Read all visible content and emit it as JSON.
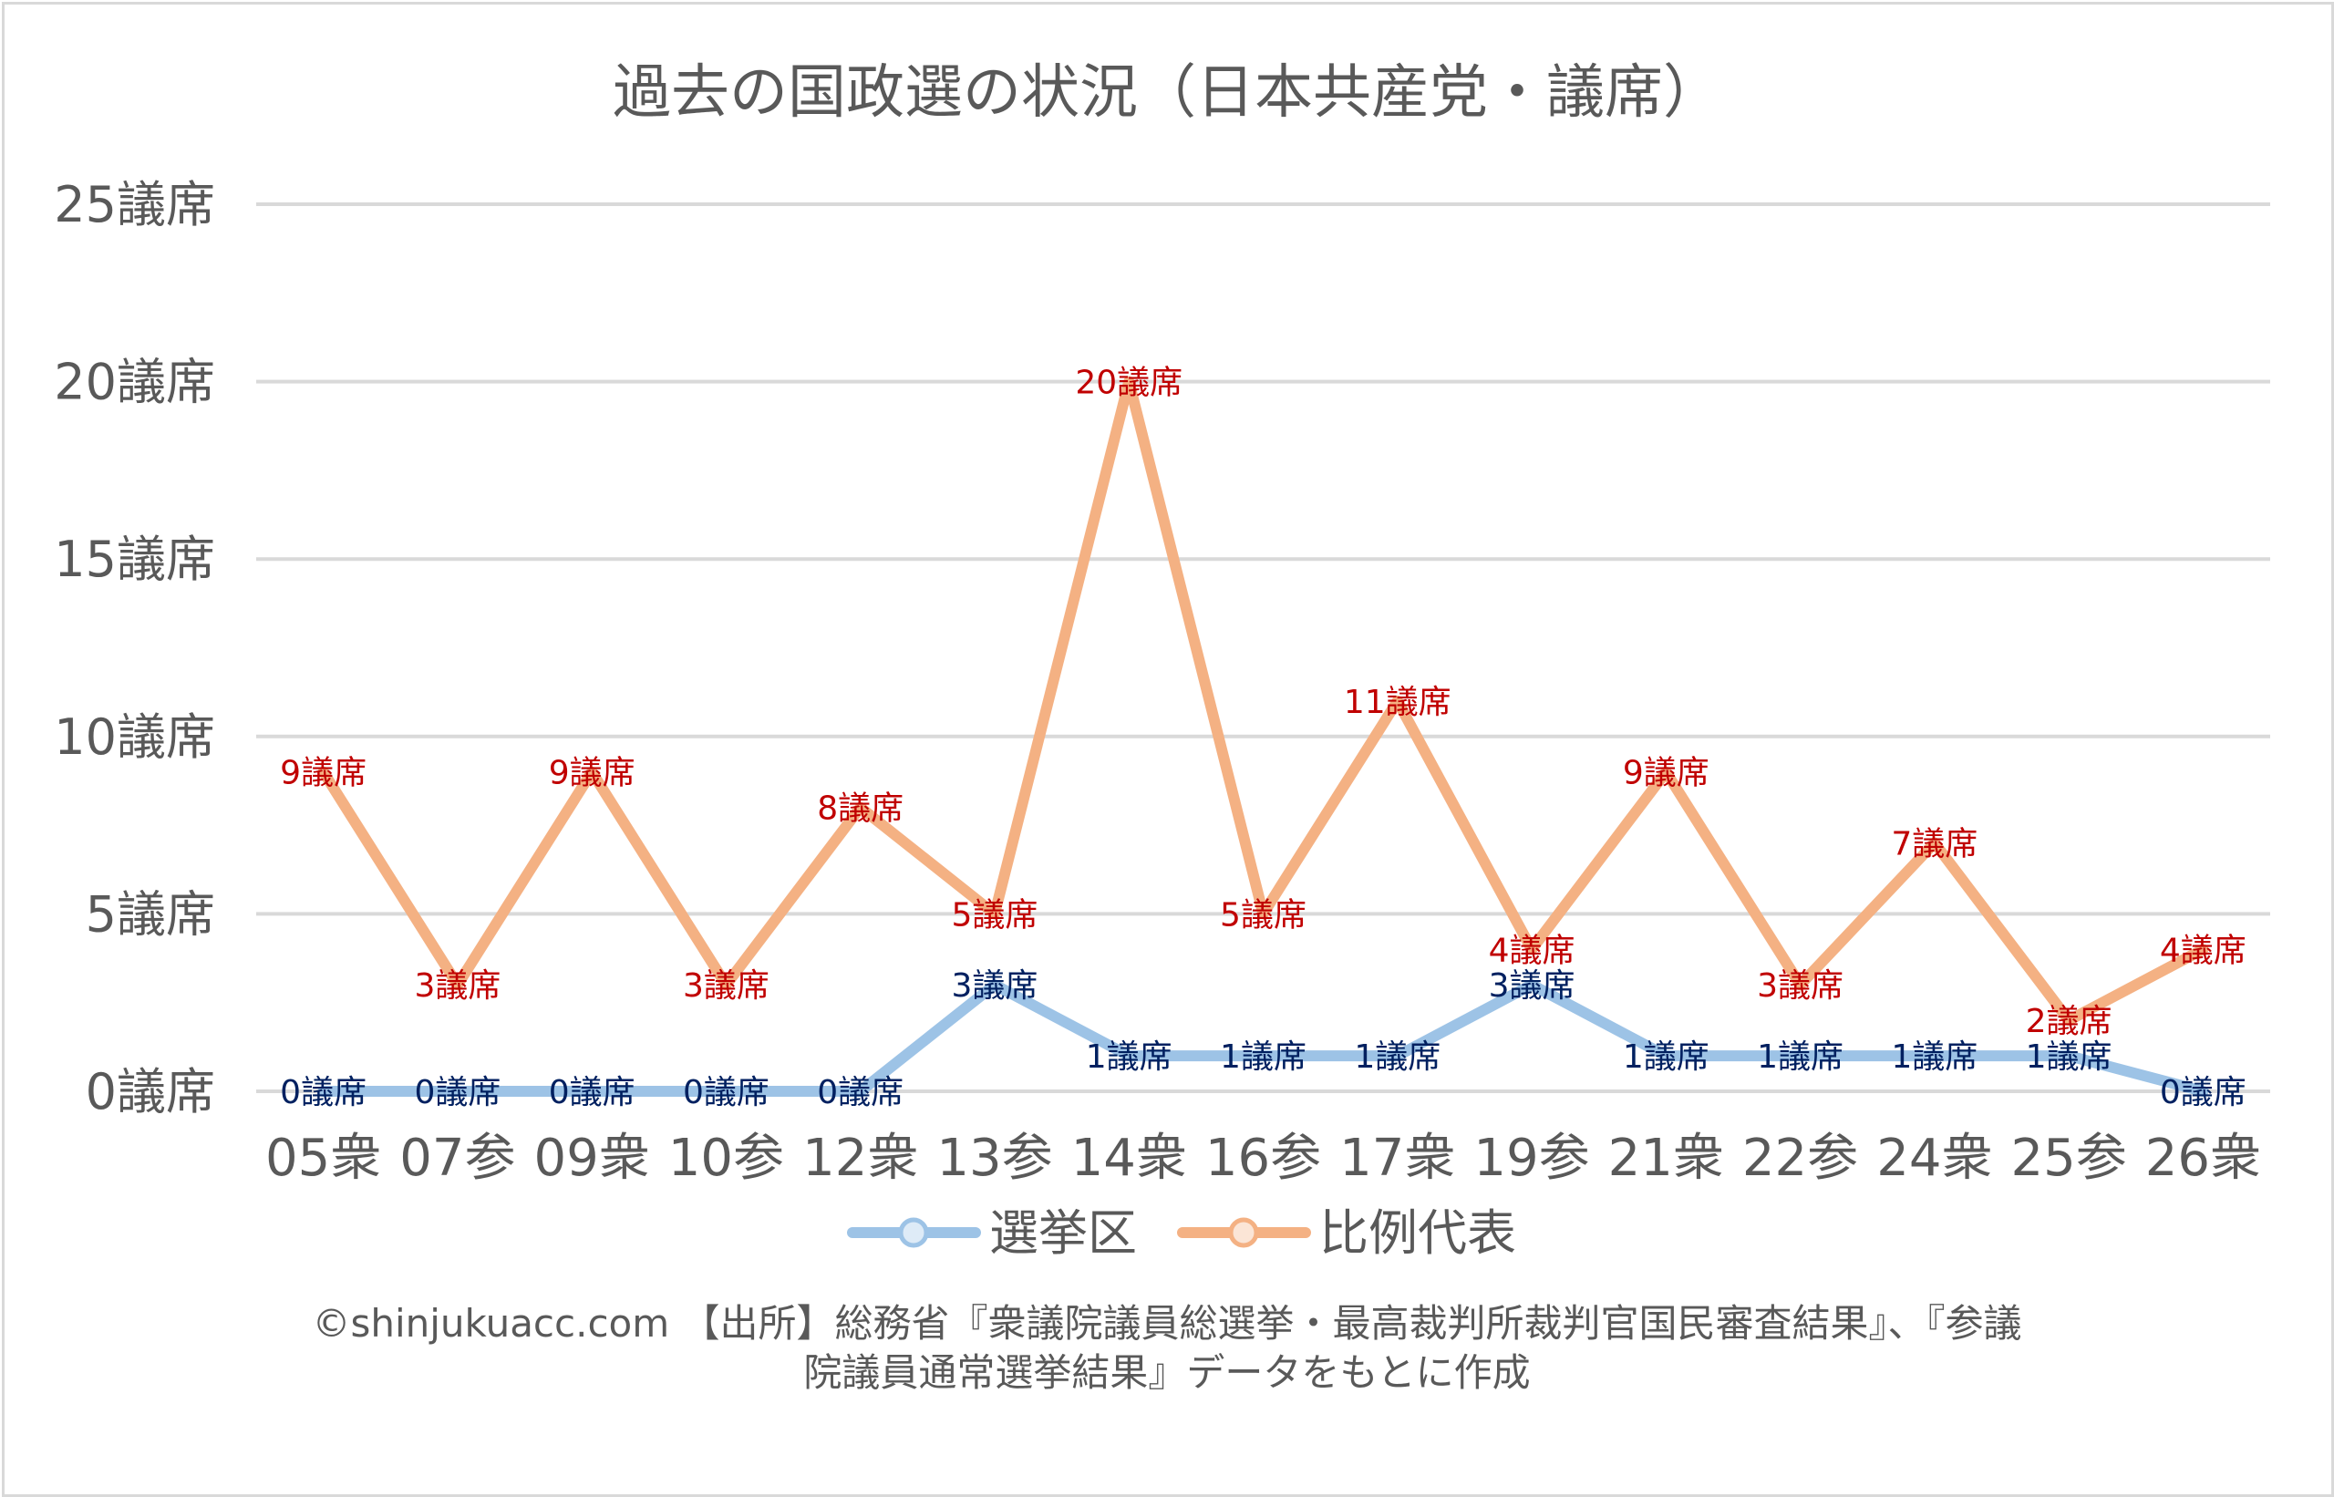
{
  "chart_data": {
    "type": "line",
    "title": "過去の国政選の状況（日本共産党・議席）",
    "categories": [
      "05衆",
      "07参",
      "09衆",
      "10参",
      "12衆",
      "13参",
      "14衆",
      "16参",
      "17衆",
      "19参",
      "21衆",
      "22参",
      "24衆",
      "25参",
      "26衆"
    ],
    "series": [
      {
        "name": "選挙区",
        "color": "#9dc3e6",
        "label_color": "#002060",
        "values": [
          0,
          0,
          0,
          0,
          0,
          3,
          1,
          1,
          1,
          3,
          1,
          1,
          1,
          1,
          0
        ]
      },
      {
        "name": "比例代表",
        "color": "#f4b183",
        "label_color": "#c00000",
        "values": [
          9,
          3,
          9,
          3,
          8,
          5,
          20,
          5,
          11,
          4,
          9,
          3,
          7,
          2,
          4
        ]
      }
    ],
    "unit_suffix": "議席",
    "ylim": [
      0,
      25
    ],
    "yticks": [
      0,
      5,
      10,
      15,
      20,
      25
    ],
    "ytick_labels": [
      "0議席",
      "5議席",
      "10議席",
      "15議席",
      "20議席",
      "25議席"
    ],
    "grid": true,
    "legend_position": "bottom",
    "xlabel": "",
    "ylabel": ""
  },
  "footer": {
    "line1": "©shinjukuacc.com 【出所】総務省『衆議院議員総選挙・最高裁判所裁判官国民審査結果』、『参議",
    "line2": "院議員通常選挙結果』データをもとに作成"
  }
}
